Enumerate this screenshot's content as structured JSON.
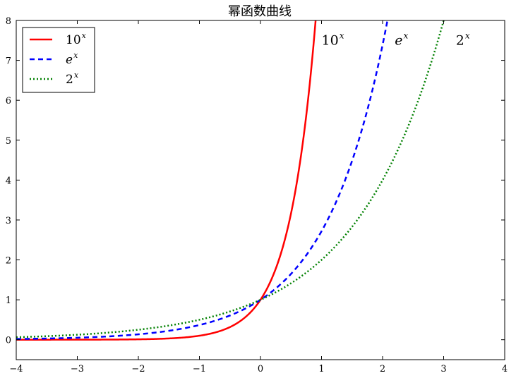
{
  "chart_data": {
    "type": "line",
    "title": "幂函数曲线",
    "xlabel": "",
    "ylabel": "",
    "xlim": [
      -4,
      4
    ],
    "ylim": [
      -0.5,
      8
    ],
    "xticks": [
      -4,
      -3,
      -2,
      -1,
      0,
      1,
      2,
      3,
      4
    ],
    "yticks": [
      0,
      1,
      2,
      3,
      4,
      5,
      6,
      7,
      8
    ],
    "xtick_labels": [
      "−4",
      "−3",
      "−2",
      "−1",
      "0",
      "1",
      "2",
      "3",
      "4"
    ],
    "ytick_labels": [
      "0",
      "1",
      "2",
      "3",
      "4",
      "5",
      "6",
      "7",
      "8"
    ],
    "grid": false,
    "legend_position": "top-left",
    "series": [
      {
        "name_base": "10",
        "name_exp": "x",
        "base": 10,
        "color": "#ff0000",
        "style": "solid",
        "x": [
          -4.0,
          -3.5,
          -3.0,
          -2.5,
          -2.0,
          -1.5,
          -1.0,
          -0.75,
          -0.5,
          -0.25,
          0.0,
          0.25,
          0.5,
          0.6,
          0.7,
          0.75,
          0.8,
          0.85,
          0.903
        ],
        "y": [
          0.0001,
          0.0003,
          0.001,
          0.0032,
          0.01,
          0.0316,
          0.1,
          0.1778,
          0.3162,
          0.5623,
          1.0,
          1.7783,
          3.1623,
          3.981,
          5.012,
          5.623,
          6.31,
          7.079,
          8.0
        ]
      },
      {
        "name_base": "e",
        "name_exp": "x",
        "base": 2.718281828,
        "color": "#0000ff",
        "style": "dashed",
        "x": [
          -4.0,
          -3.5,
          -3.0,
          -2.5,
          -2.0,
          -1.5,
          -1.0,
          -0.5,
          0.0,
          0.5,
          1.0,
          1.25,
          1.5,
          1.75,
          1.9,
          2.0,
          2.079
        ],
        "y": [
          0.0183,
          0.0302,
          0.0498,
          0.0821,
          0.1353,
          0.2231,
          0.3679,
          0.6065,
          1.0,
          1.6487,
          2.7183,
          3.4903,
          4.4817,
          5.7546,
          6.6859,
          7.3891,
          8.0
        ]
      },
      {
        "name_base": "2",
        "name_exp": "x",
        "base": 2,
        "color": "#008000",
        "style": "dotted",
        "x": [
          -4.0,
          -3.5,
          -3.0,
          -2.5,
          -2.0,
          -1.5,
          -1.0,
          -0.5,
          0.0,
          0.5,
          1.0,
          1.5,
          2.0,
          2.25,
          2.5,
          2.75,
          3.0
        ],
        "y": [
          0.0625,
          0.0884,
          0.125,
          0.1768,
          0.25,
          0.3536,
          0.5,
          0.7071,
          1.0,
          1.4142,
          2.0,
          2.8284,
          4.0,
          4.7568,
          5.6569,
          6.7272,
          8.0
        ]
      }
    ],
    "annotations": [
      {
        "base": "10",
        "exp": "x",
        "x": 1.0,
        "y": 7.5
      },
      {
        "base": "e",
        "exp": "x",
        "x": 2.2,
        "y": 7.5
      },
      {
        "base": "2",
        "exp": "x",
        "x": 3.2,
        "y": 7.5
      }
    ]
  }
}
